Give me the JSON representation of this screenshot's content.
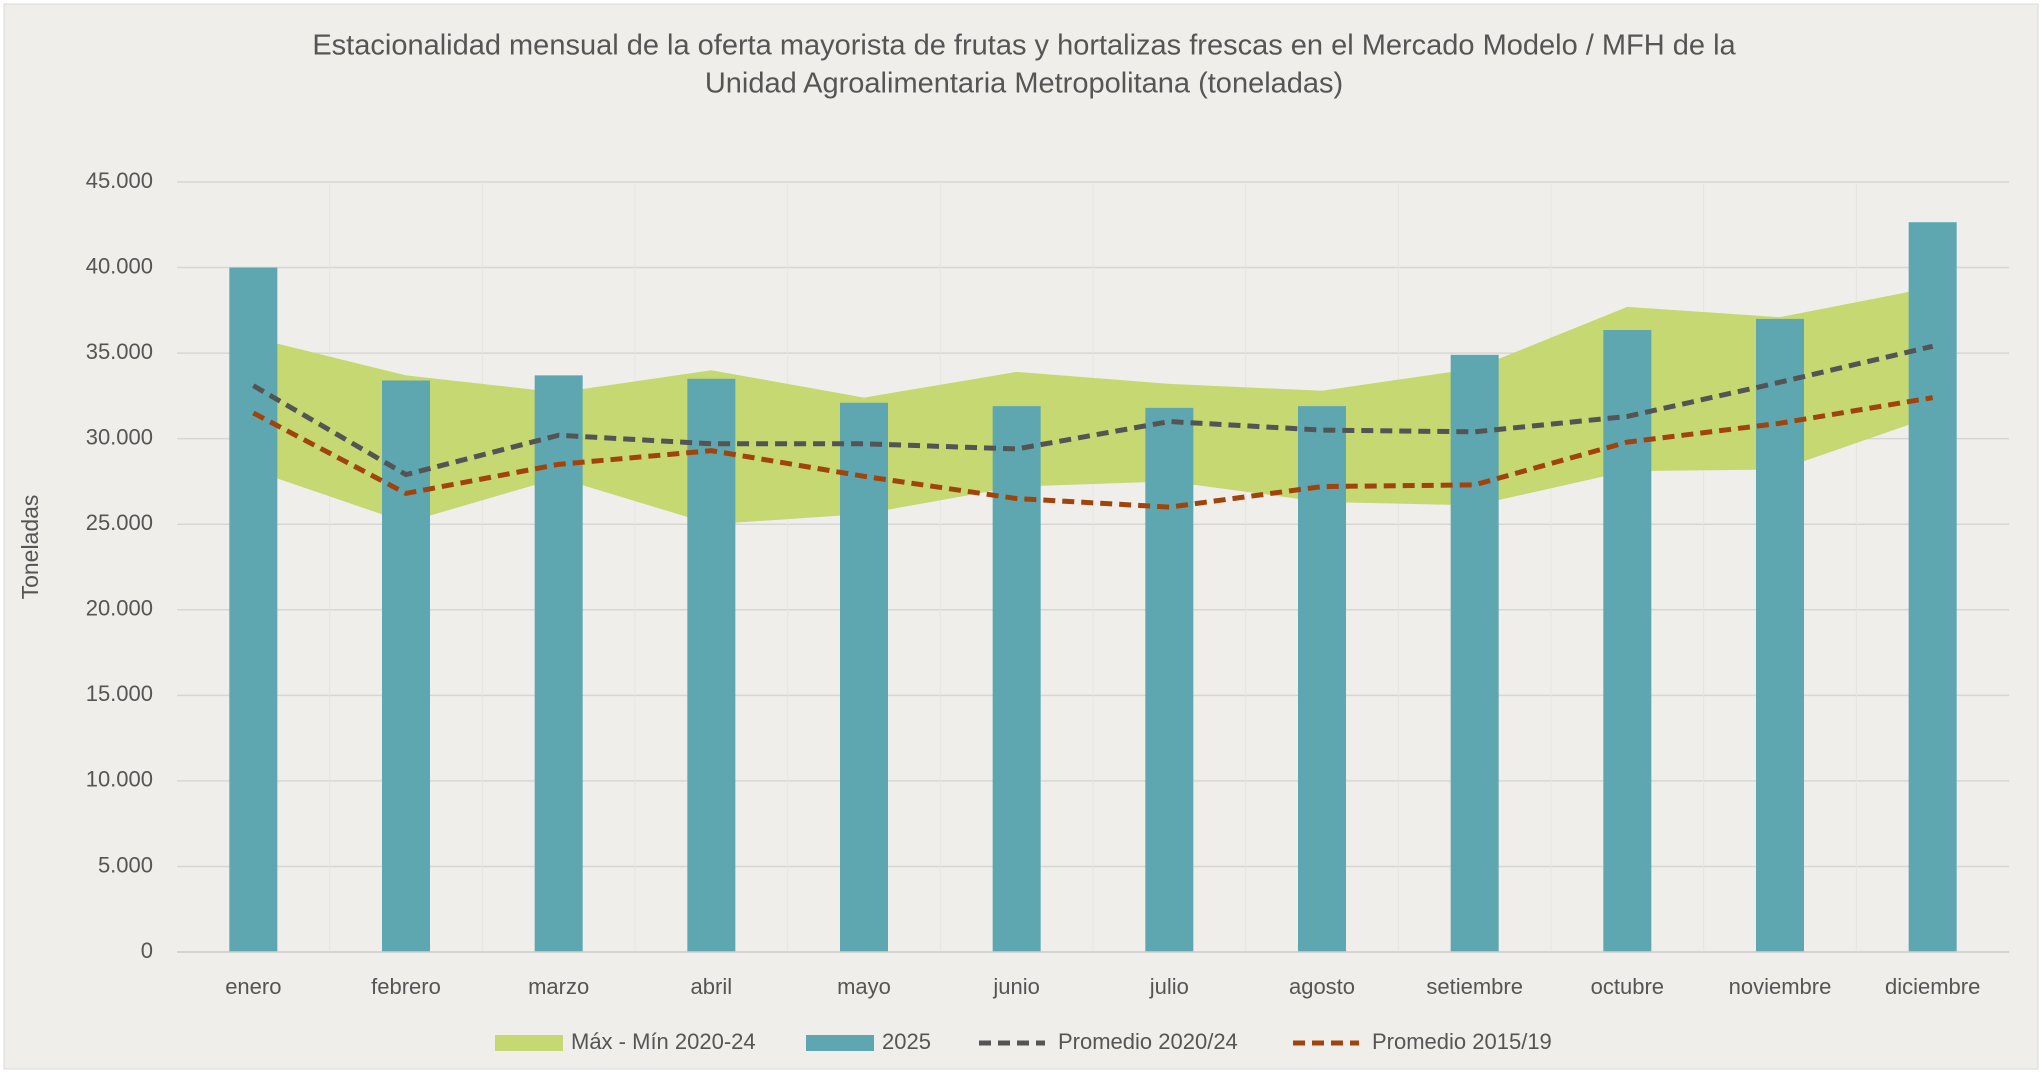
{
  "chart_data": {
    "type": "bar_line_area",
    "title": "Estacionalidad mensual de la oferta mayorista de frutas y hortalizas frescas en el Mercado Modelo / MFH de la",
    "subtitle": "Unidad Agroalimentaria Metropolitana (toneladas)",
    "y_label": "Toneladas",
    "categories": [
      "enero",
      "febrero",
      "marzo",
      "abril",
      "mayo",
      "junio",
      "julio",
      "agosto",
      "setiembre",
      "octubre",
      "noviembre",
      "diciembre"
    ],
    "series": [
      {
        "name": "Máx - Mín 2020-24",
        "type": "area",
        "color": "#c5d872",
        "values": [
          35900,
          33700,
          32700,
          34000,
          32400,
          33900,
          33200,
          32800,
          34100,
          37700,
          37100,
          38850
        ],
        "low": [
          28150,
          25100,
          27700,
          25000,
          25600,
          27200,
          27500,
          26300,
          26100,
          28100,
          28200,
          31300
        ]
      },
      {
        "name": "2025",
        "type": "bar",
        "color": "#5ea7b1",
        "values": [
          40000,
          33400,
          33700,
          33500,
          32100,
          31900,
          31800,
          31900,
          34900,
          36350,
          37000,
          42650
        ]
      },
      {
        "name": "Promedio 2020/24",
        "type": "line",
        "color": "#545454",
        "values": [
          33100,
          27900,
          30200,
          29700,
          29700,
          29400,
          31000,
          30500,
          30400,
          31300,
          33300,
          35400
        ]
      },
      {
        "name": "Promedio 2015/19",
        "type": "line",
        "color": "#a0440c",
        "values": [
          31500,
          26800,
          28500,
          29300,
          27800,
          26500,
          26000,
          27200,
          27300,
          29800,
          30900,
          32400
        ]
      }
    ],
    "ylim": [
      0,
      45000
    ],
    "yticks": [
      0,
      {
        "value": 5000,
        "label": "5.000"
      },
      {
        "value": 10000,
        "label": "10.000"
      },
      {
        "value": 15000,
        "label": "15.000"
      },
      {
        "value": 20000,
        "label": "20.000"
      },
      {
        "value": 25000,
        "label": "25.000"
      },
      {
        "value": 30000,
        "label": "30.000"
      },
      {
        "value": 35000,
        "label": "35.000"
      },
      {
        "value": 40000,
        "label": "40.000"
      },
      {
        "value": 45000,
        "label": "45.000"
      }
    ],
    "grid": true,
    "legend": "bottom"
  }
}
